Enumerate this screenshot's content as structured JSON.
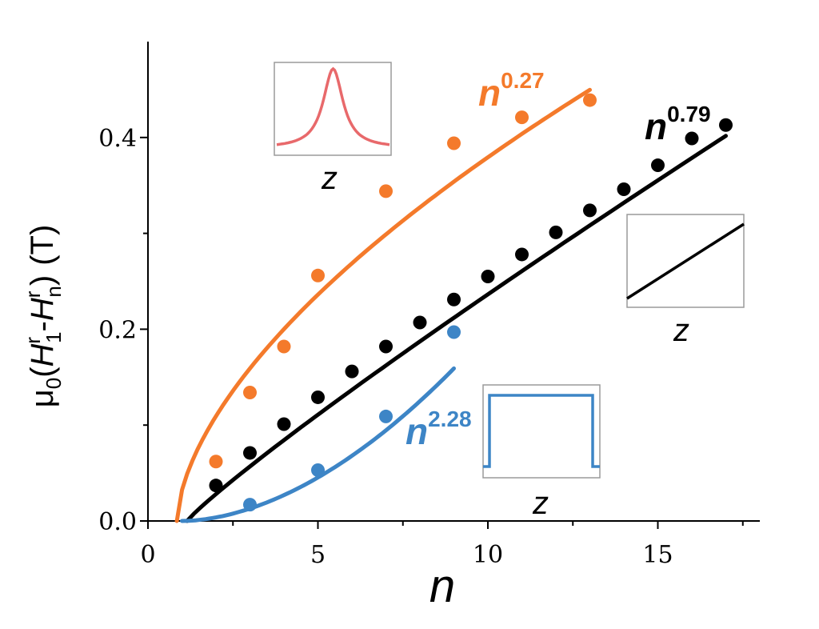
{
  "chart_data": {
    "type": "scatter",
    "title": "",
    "xlabel": "n",
    "ylabel": {
      "mu": "μ",
      "mu_sub": "0",
      "open": "(",
      "H1": "H",
      "H1_sup": "r",
      "H1_sub": "1",
      "minus": "-",
      "Hn": "H",
      "Hn_sup": "r",
      "Hn_sub": "n",
      "close": ")",
      "unit": "(T)"
    },
    "xlim": [
      0,
      18
    ],
    "ylim": [
      0,
      0.5
    ],
    "x_ticks": [
      0,
      5,
      10,
      15
    ],
    "y_ticks": [
      0.0,
      0.2,
      0.4
    ],
    "grid": false,
    "series": [
      {
        "label_base": "n",
        "label_exp": "0.27",
        "color": "#f47a2b",
        "points": [
          [
            2,
            0.062
          ],
          [
            3,
            0.134
          ],
          [
            4,
            0.182
          ],
          [
            5,
            0.256
          ],
          [
            7,
            0.344
          ],
          [
            9,
            0.394
          ],
          [
            11,
            0.421
          ],
          [
            13,
            0.439
          ]
        ],
        "fit": {
          "x0": 0.85,
          "x1": 13,
          "a": 0.1005,
          "c": 0.0,
          "p": 0.6
        }
      },
      {
        "label_base": "n",
        "label_exp": "0.79",
        "color": "#000000",
        "points": [
          [
            2,
            0.037
          ],
          [
            3,
            0.071
          ],
          [
            4,
            0.101
          ],
          [
            5,
            0.129
          ],
          [
            6,
            0.156
          ],
          [
            7,
            0.182
          ],
          [
            8,
            0.207
          ],
          [
            9,
            0.231
          ],
          [
            10,
            0.255
          ],
          [
            11,
            0.278
          ],
          [
            12,
            0.301
          ],
          [
            13,
            0.324
          ],
          [
            14,
            0.346
          ],
          [
            15,
            0.371
          ],
          [
            16,
            0.399
          ],
          [
            17,
            0.413
          ]
        ],
        "fit": {
          "x0": 1.15,
          "x1": 17,
          "a": 0.0325,
          "c": 0.0,
          "p": 0.91
        }
      },
      {
        "label_base": "n",
        "label_exp": "2.28",
        "color": "#3d85c6",
        "points": [
          [
            3,
            0.017
          ],
          [
            5,
            0.053
          ],
          [
            7,
            0.109
          ],
          [
            9,
            0.197
          ]
        ],
        "fit": {
          "x0": 1.0,
          "x1": 9,
          "a": 0.00369,
          "c": 0.0,
          "p": 1.81
        }
      }
    ],
    "insets": [
      {
        "name": "inset-peak",
        "shape": "peak",
        "color": "#e8696b",
        "label": "z"
      },
      {
        "name": "inset-linear",
        "shape": "linear",
        "color": "#000000",
        "label": "z"
      },
      {
        "name": "inset-step",
        "shape": "step",
        "color": "#3d85c6",
        "label": "z"
      }
    ]
  }
}
